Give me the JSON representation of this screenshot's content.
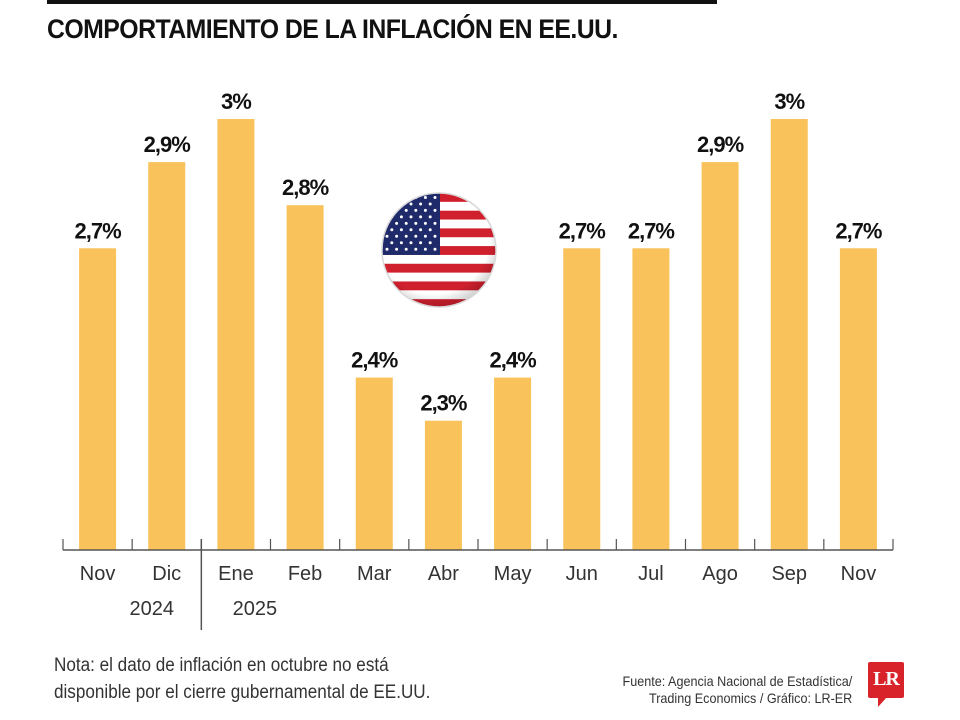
{
  "title": "COMPORTAMIENTO DE LA INFLACIÓN EN EE.UU.",
  "colors": {
    "bar": "#F9C25A",
    "axis": "#555555",
    "logo": "#D9232A"
  },
  "chart_data": {
    "type": "bar",
    "title": "COMPORTAMIENTO DE LA INFLACIÓN EN EE.UU.",
    "xlabel": "",
    "ylabel": "",
    "categories": [
      "Nov",
      "Dic",
      "Ene",
      "Feb",
      "Mar",
      "Abr",
      "May",
      "Jun",
      "Jul",
      "Ago",
      "Sep",
      "Nov"
    ],
    "values": [
      2.7,
      2.9,
      3.0,
      2.8,
      2.4,
      2.3,
      2.4,
      2.7,
      2.7,
      2.9,
      3.0,
      2.7
    ],
    "data_labels": [
      "2,7%",
      "2,9%",
      "3%",
      "2,8%",
      "2,4%",
      "2,3%",
      "2,4%",
      "2,7%",
      "2,7%",
      "2,9%",
      "3%",
      "2,7%"
    ],
    "year_groups": [
      {
        "label": "2024",
        "from": 0,
        "to": 1
      },
      {
        "label": "2025",
        "from": 2,
        "to": 11
      }
    ],
    "ylim": [
      2.0,
      3.0
    ],
    "grid": false,
    "legend": "none",
    "annotation": "us-flag-icon"
  },
  "note": {
    "line1": "Nota: el dato de inflación en octubre no está",
    "line2": "disponible por el cierre gubernamental de EE.UU."
  },
  "source": {
    "line1": "Fuente: Agencia Nacional de Estadística/",
    "line2": "Trading Economics / Gráfico: LR-ER"
  },
  "logo": {
    "text": "LR"
  }
}
